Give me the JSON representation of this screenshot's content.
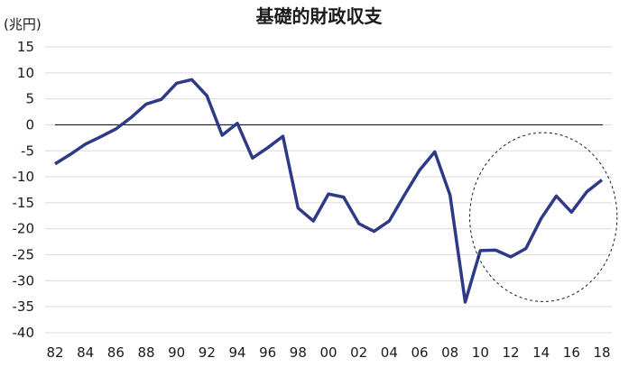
{
  "chart_data": {
    "type": "line",
    "title": "基礎的財政収支",
    "unit": "(兆円)",
    "xlabel": "",
    "ylabel": "",
    "ylim": [
      -40,
      15
    ],
    "yticks": [
      15,
      10,
      5,
      0,
      -5,
      -10,
      -15,
      -20,
      -25,
      -30,
      -35,
      -40
    ],
    "xlim": [
      82,
      118
    ],
    "xticks": [
      "82",
      "84",
      "86",
      "88",
      "90",
      "92",
      "94",
      "96",
      "98",
      "00",
      "02",
      "04",
      "06",
      "08",
      "10",
      "12",
      "14",
      "16",
      "18"
    ],
    "grid": true,
    "series_color": "#2e3a87",
    "series": [
      {
        "x": [
          82,
          83,
          84,
          85,
          86,
          87,
          88,
          89,
          90,
          91,
          92,
          93,
          94,
          95,
          96,
          97,
          98,
          99,
          100,
          101,
          102,
          103,
          104,
          105,
          106,
          107,
          108,
          109,
          110,
          111,
          112,
          113,
          114,
          115,
          116,
          117,
          118
        ],
        "values": [
          -7.5,
          -5.7,
          -3.7,
          -2.3,
          -0.8,
          1.4,
          4.0,
          4.9,
          8.0,
          8.7,
          5.6,
          -2.0,
          0.3,
          -6.4,
          -4.4,
          -2.2,
          -16.0,
          -18.5,
          -13.3,
          -13.9,
          -19.0,
          -20.5,
          -18.5,
          -13.5,
          -8.7,
          -5.2,
          -13.5,
          -34.1,
          -24.2,
          -24.1,
          -25.4,
          -23.8,
          -18.0,
          -13.7,
          -16.8,
          -12.9,
          -10.6
        ]
      }
    ],
    "annotation": "dashed ellipse around 2010-2018"
  }
}
